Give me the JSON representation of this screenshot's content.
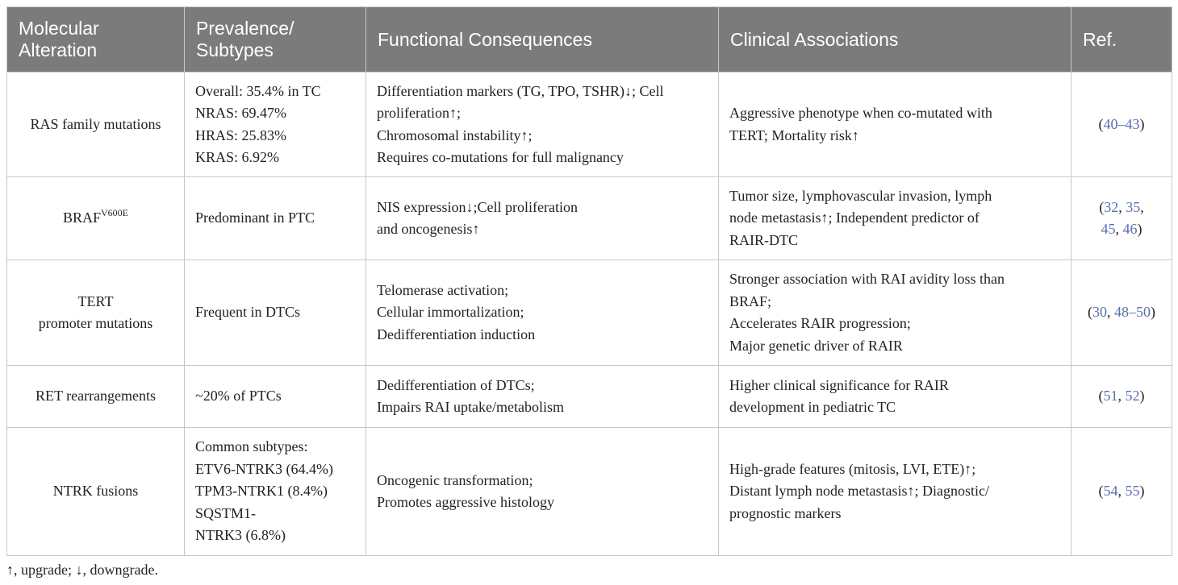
{
  "table": {
    "headers": [
      [
        "Molecular",
        "Alteration"
      ],
      [
        "Prevalence/",
        "Subtypes"
      ],
      [
        "Functional Consequences"
      ],
      [
        "Clinical Associations"
      ],
      [
        "Ref."
      ]
    ],
    "rows": [
      {
        "alteration": [
          "RAS family mutations"
        ],
        "prevalence": [
          "Overall: 35.4% in TC",
          "NRAS: 69.47%",
          "HRAS: 25.83%",
          "KRAS: 6.92%"
        ],
        "functional": [
          "Differentiation markers (TG, TPO, TSHR)↓; Cell",
          "proliferation↑;",
          "Chromosomal instability↑;",
          "Requires co-mutations for full malignancy"
        ],
        "clinical": [
          "Aggressive phenotype when co-mutated with",
          "TERT; Mortality risk↑"
        ],
        "ref": [
          "(|40–43|)"
        ]
      },
      {
        "alteration_base": "BRAF",
        "alteration_sup": "V600E",
        "prevalence": [
          "Predominant in PTC"
        ],
        "functional": [
          "NIS expression↓;Cell proliferation",
          "and oncogenesis↑"
        ],
        "clinical": [
          "Tumor size, lymphovascular invasion, lymph",
          "node metastasis↑; Independent predictor of",
          "RAIR-DTC"
        ],
        "ref": [
          "(|32|, |35|,",
          "|45|, |46|)"
        ]
      },
      {
        "alteration": [
          "TERT",
          "promoter mutations"
        ],
        "prevalence": [
          "Frequent in DTCs"
        ],
        "functional": [
          "Telomerase activation;",
          "Cellular immortalization;",
          "Dedifferentiation induction"
        ],
        "clinical": [
          "Stronger association with RAI avidity loss than",
          "BRAF;",
          "Accelerates RAIR progression;",
          "Major genetic driver of RAIR"
        ],
        "ref": [
          "(|30|, |48–50|)"
        ]
      },
      {
        "alteration": [
          "RET rearrangements"
        ],
        "prevalence": [
          "~20% of PTCs"
        ],
        "functional": [
          "Dedifferentiation of DTCs;",
          "Impairs RAI uptake/metabolism"
        ],
        "clinical": [
          "Higher clinical significance for RAIR",
          "development in pediatric TC"
        ],
        "ref": [
          "(|51|, |52|)"
        ]
      },
      {
        "alteration": [
          "NTRK fusions"
        ],
        "prevalence": [
          "Common subtypes:",
          "ETV6-NTRK3 (64.4%)",
          "TPM3-NTRK1 (8.4%)",
          "SQSTM1-",
          "NTRK3 (6.8%)"
        ],
        "functional": [
          "Oncogenic transformation;",
          "Promotes aggressive histology"
        ],
        "clinical": [
          "High-grade features (mitosis, LVI, ETE)↑;",
          "Distant lymph node metastasis↑; Diagnostic/",
          "prognostic markers"
        ],
        "ref": [
          "(|54|, |55|)"
        ]
      }
    ],
    "row_heights": [
      130,
      103,
      131,
      77,
      159
    ],
    "colors": {
      "header_bg": "#7b7b7b",
      "header_text": "#ffffff",
      "ref_link": "#5a6fb0",
      "border": "#c8c8c8"
    }
  },
  "footnote": "↑, upgrade; ↓, downgrade."
}
